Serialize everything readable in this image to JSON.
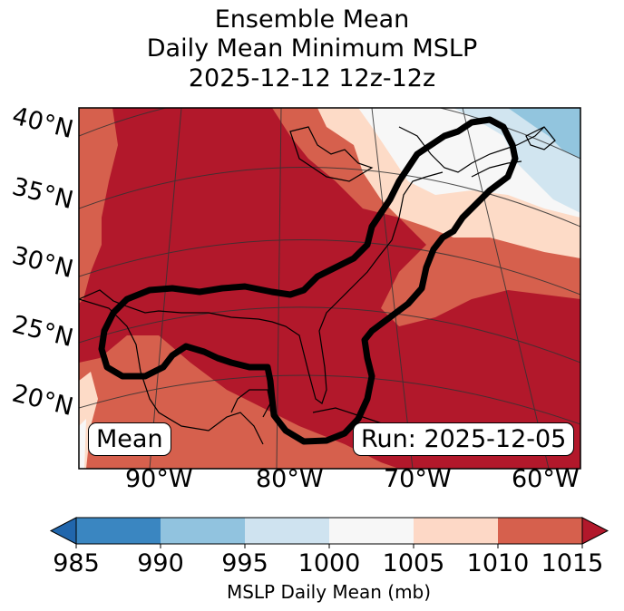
{
  "title": {
    "line1": "Ensemble Mean",
    "line2": "Daily Mean Minimum MSLP",
    "line3": "2025-12-12 12z-12z"
  },
  "map": {
    "lat_labels": [
      "40°N",
      "35°N",
      "30°N",
      "25°N",
      "20°N"
    ],
    "lon_labels": [
      "90°W",
      "80°W",
      "70°W",
      "60°W"
    ],
    "mean_box": "Mean",
    "run_box": "Run: 2025-12-05"
  },
  "colorbar": {
    "ticks": [
      "985",
      "990",
      "995",
      "1000",
      "1005",
      "1010",
      "1015"
    ],
    "label": "MSLP Daily Mean (mb)",
    "colors": [
      "#3a86c1",
      "#91c3df",
      "#cfe3f0",
      "#f7f7f7",
      "#fdd8c6",
      "#d6604d",
      "#b2182b"
    ],
    "under_color": "#2166ac",
    "over_color": "#b2182b"
  },
  "colors": {
    "c1015": "#b2182b",
    "c1010": "#d6604d",
    "c1005": "#fddbc7",
    "c1000": "#f7f7f7",
    "c995": "#d1e5f0",
    "c990": "#92c5de",
    "contour": "#000000"
  }
}
